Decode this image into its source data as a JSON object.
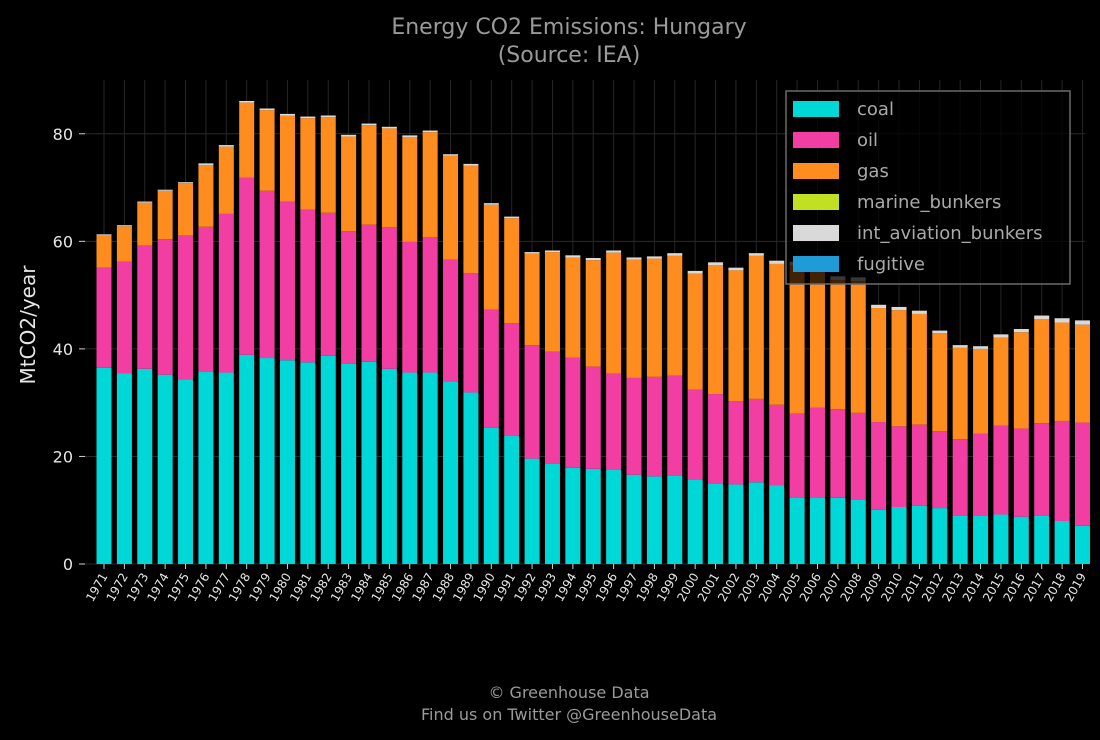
{
  "chart_data": {
    "type": "bar",
    "stacked": true,
    "title": "Energy CO2 Emissions: Hungary",
    "subtitle": "(Source: IEA)",
    "xlabel": "",
    "ylabel": "MtCO2/year",
    "ylim": [
      0,
      90
    ],
    "yticks": [
      0,
      20,
      40,
      60,
      80
    ],
    "grid": true,
    "legend_position": "top-right",
    "categories": [
      "1971",
      "1972",
      "1973",
      "1974",
      "1975",
      "1976",
      "1977",
      "1978",
      "1979",
      "1980",
      "1981",
      "1982",
      "1983",
      "1984",
      "1985",
      "1986",
      "1987",
      "1988",
      "1989",
      "1990",
      "1991",
      "1992",
      "1993",
      "1994",
      "1995",
      "1996",
      "1997",
      "1998",
      "1999",
      "2000",
      "2001",
      "2002",
      "2003",
      "2004",
      "2005",
      "2006",
      "2007",
      "2008",
      "2009",
      "2010",
      "2011",
      "2012",
      "2013",
      "2014",
      "2015",
      "2016",
      "2017",
      "2018",
      "2019"
    ],
    "series": [
      {
        "name": "coal",
        "color": "#00d7d7",
        "values": [
          36.5,
          35.5,
          36.3,
          35.2,
          34.3,
          35.7,
          35.6,
          38.9,
          38.3,
          37.9,
          37.5,
          38.7,
          37.2,
          37.6,
          36.3,
          35.6,
          35.6,
          34.0,
          31.9,
          25.3,
          23.8,
          19.6,
          18.6,
          17.9,
          17.7,
          17.6,
          16.6,
          16.3,
          16.5,
          15.7,
          15.0,
          14.8,
          15.2,
          14.6,
          12.4,
          12.4,
          12.3,
          11.9,
          10.1,
          10.6,
          10.8,
          10.4,
          9.0,
          9.0,
          9.2,
          8.8,
          9.0,
          8.0,
          7.1
        ]
      },
      {
        "name": "oil",
        "color": "#f23ea3",
        "values": [
          18.6,
          20.7,
          22.9,
          25.2,
          26.8,
          27.0,
          29.5,
          32.9,
          31.1,
          29.5,
          28.4,
          26.6,
          24.7,
          25.5,
          26.3,
          24.3,
          25.2,
          22.6,
          22.2,
          22.0,
          21.0,
          21.1,
          20.9,
          20.5,
          19.0,
          17.8,
          18.0,
          18.5,
          18.5,
          16.7,
          16.6,
          15.5,
          15.5,
          15.0,
          15.6,
          16.7,
          16.5,
          16.2,
          16.3,
          15.0,
          15.1,
          14.3,
          14.2,
          15.2,
          16.5,
          16.4,
          17.2,
          18.6,
          19.2
        ]
      },
      {
        "name": "gas",
        "color": "#ff8c1e",
        "values": [
          6.0,
          6.6,
          8.0,
          9.0,
          9.7,
          11.5,
          12.5,
          14.0,
          15.0,
          16.0,
          17.0,
          17.8,
          17.6,
          18.5,
          18.4,
          19.5,
          19.5,
          19.3,
          20.0,
          19.5,
          19.5,
          17.0,
          18.5,
          18.6,
          19.8,
          22.5,
          22.0,
          22.0,
          22.3,
          21.6,
          24.0,
          24.3,
          26.6,
          26.2,
          27.6,
          26.6,
          24.0,
          24.5,
          21.2,
          21.6,
          20.6,
          18.2,
          17.0,
          15.8,
          16.4,
          17.9,
          19.3,
          18.3,
          18.2
        ]
      },
      {
        "name": "marine_bunkers",
        "color": "#c2e023",
        "values": [
          0,
          0,
          0,
          0,
          0,
          0,
          0,
          0,
          0,
          0,
          0,
          0,
          0,
          0,
          0,
          0,
          0,
          0,
          0,
          0,
          0,
          0,
          0,
          0,
          0,
          0,
          0,
          0,
          0,
          0,
          0,
          0,
          0,
          0,
          0,
          0,
          0,
          0,
          0,
          0,
          0,
          0,
          0,
          0,
          0,
          0,
          0,
          0,
          0
        ]
      },
      {
        "name": "int_aviation_bunkers",
        "color": "#d9d9d9",
        "values": [
          0.2,
          0.2,
          0.2,
          0.2,
          0.2,
          0.3,
          0.3,
          0.3,
          0.3,
          0.3,
          0.3,
          0.3,
          0.3,
          0.3,
          0.3,
          0.3,
          0.3,
          0.3,
          0.3,
          0.3,
          0.3,
          0.3,
          0.3,
          0.4,
          0.4,
          0.4,
          0.4,
          0.4,
          0.5,
          0.5,
          0.5,
          0.5,
          0.5,
          0.6,
          0.6,
          0.7,
          0.7,
          0.7,
          0.6,
          0.6,
          0.6,
          0.5,
          0.5,
          0.5,
          0.6,
          0.6,
          0.7,
          0.8,
          0.8
        ]
      },
      {
        "name": "fugitive",
        "color": "#1f9bd7",
        "values": [
          0,
          0,
          0,
          0,
          0,
          0,
          0,
          0,
          0,
          0,
          0,
          0,
          0,
          0,
          0,
          0,
          0,
          0,
          0,
          0,
          0,
          0,
          0,
          0,
          0,
          0,
          0,
          0,
          0,
          0,
          0,
          0,
          0,
          0,
          0,
          0,
          0,
          0,
          0,
          0,
          0,
          0,
          0,
          0,
          0,
          0,
          0,
          0,
          0
        ]
      }
    ]
  },
  "footer": {
    "line1": "© Greenhouse Data",
    "line2": "Find us on Twitter @GreenhouseData"
  }
}
